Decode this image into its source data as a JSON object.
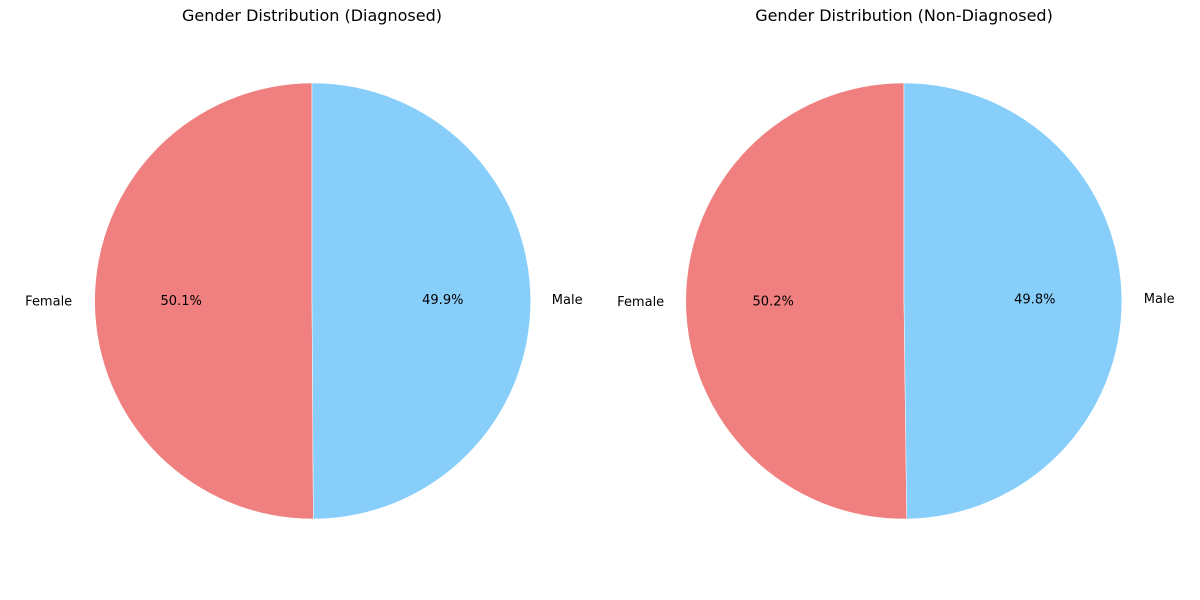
{
  "chart_data": [
    {
      "type": "pie",
      "title": "Gender Distribution (Diagnosed)",
      "start_angle_deg": 90,
      "direction": "counterclockwise",
      "slices": [
        {
          "label": "Female",
          "value": 50.1,
          "pct_label": "50.1%",
          "color": "#f08080"
        },
        {
          "label": "Male",
          "value": 49.9,
          "pct_label": "49.9%",
          "color": "#87cefa"
        }
      ]
    },
    {
      "type": "pie",
      "title": "Gender Distribution (Non-Diagnosed)",
      "start_angle_deg": 90,
      "direction": "counterclockwise",
      "slices": [
        {
          "label": "Female",
          "value": 50.2,
          "pct_label": "50.2%",
          "color": "#f08080"
        },
        {
          "label": "Male",
          "value": 49.8,
          "pct_label": "49.8%",
          "color": "#87cefa"
        }
      ]
    }
  ]
}
